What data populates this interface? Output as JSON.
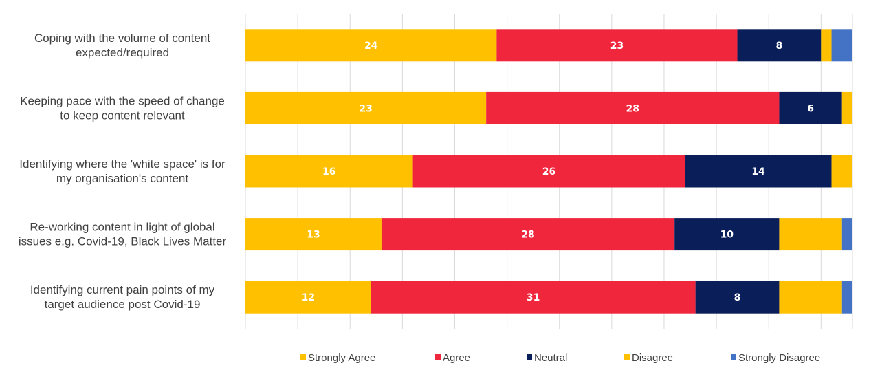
{
  "chart_data": {
    "type": "bar",
    "orientation": "horizontal",
    "stacked": true,
    "title": "",
    "xlabel": "",
    "ylabel": "",
    "xlim": [
      0,
      58
    ],
    "grid": true,
    "legend_position": "bottom",
    "categories": [
      [
        "Coping with the volume of content",
        "expected/required"
      ],
      [
        "Keeping pace with the speed of change",
        "to keep content relevant"
      ],
      [
        "Identifying where the 'white space' is for",
        "my organisation's content"
      ],
      [
        "Re-working content in light of global",
        "issues e.g. Covid-19, Black Lives Matter"
      ],
      [
        "Identifying current pain points of my",
        "target audience post Covid-19"
      ]
    ],
    "series": [
      {
        "name": "Strongly Agree",
        "color": "#FFC000",
        "values": [
          24,
          23,
          16,
          13,
          12
        ],
        "labels": [
          "24",
          "23",
          "16",
          "13",
          "12"
        ]
      },
      {
        "name": "Agree",
        "color": "#F0263C",
        "values": [
          23,
          28,
          26,
          28,
          31
        ],
        "labels": [
          "23",
          "28",
          "26",
          "28",
          "31"
        ]
      },
      {
        "name": "Neutral",
        "color": "#0A1E5A",
        "values": [
          8,
          6,
          14,
          10,
          8
        ],
        "labels": [
          "8",
          "6",
          "14",
          "10",
          "8"
        ]
      },
      {
        "name": "Disagree",
        "color": "#FFC000",
        "values": [
          1,
          1,
          2,
          6,
          6
        ],
        "labels": [
          "",
          "",
          "",
          "",
          ""
        ]
      },
      {
        "name": "Strongly Disagree",
        "color": "#4472C4",
        "values": [
          2,
          0,
          0,
          1,
          1
        ],
        "labels": [
          "",
          "",
          "",
          "",
          ""
        ]
      }
    ]
  }
}
